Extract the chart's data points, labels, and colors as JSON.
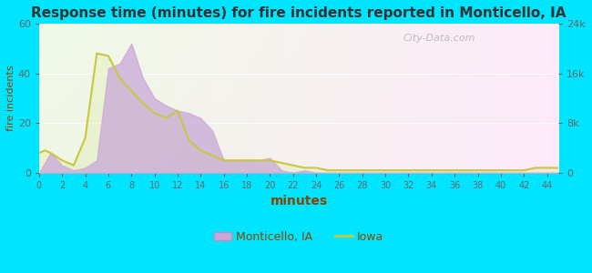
{
  "title": "Response time (minutes) for fire incidents reported in Monticello, IA",
  "xlabel": "minutes",
  "ylabel_left": "fire incidents",
  "ylabel_right_ticks": [
    "0",
    "8k",
    "16k",
    "24k"
  ],
  "ylabel_right_values": [
    0,
    8000,
    16000,
    24000
  ],
  "xlim": [
    0,
    45
  ],
  "ylim_left": [
    0,
    60
  ],
  "ylim_right": [
    0,
    24000
  ],
  "xticks": [
    0,
    2,
    4,
    6,
    8,
    10,
    12,
    14,
    16,
    18,
    20,
    22,
    24,
    26,
    28,
    30,
    32,
    34,
    36,
    38,
    40,
    42,
    44
  ],
  "yticks_left": [
    0,
    20,
    40,
    60
  ],
  "background_outer": "#00e5ff",
  "monticello_color": "#c8a8d8",
  "monticello_edge": "#b090c0",
  "iowa_line_color": "#c8c840",
  "watermark": "City-Data.com",
  "title_color": "#333333",
  "label_color": "#884400",
  "tick_color": "#666666",
  "monticello_x": [
    0,
    1,
    2,
    3,
    4,
    5,
    6,
    7,
    8,
    9,
    10,
    11,
    12,
    13,
    14,
    15,
    16,
    17,
    18,
    19,
    20,
    21,
    22,
    23,
    24,
    25,
    26,
    27,
    28,
    29,
    30,
    31,
    32,
    33,
    34,
    35,
    36,
    37,
    38,
    39,
    40,
    41,
    42,
    43,
    44,
    45
  ],
  "monticello_y": [
    0,
    8,
    3,
    1,
    2,
    5,
    42,
    44,
    52,
    38,
    30,
    27,
    25,
    24,
    22,
    17,
    5,
    5,
    5,
    5,
    6,
    1,
    0,
    1,
    0,
    0,
    0,
    0,
    0,
    0,
    0,
    0,
    0,
    0,
    0,
    0,
    0,
    0,
    0,
    0,
    0,
    0,
    0,
    0,
    0,
    0
  ],
  "iowa_x": [
    0,
    0.5,
    1,
    2,
    3,
    4,
    5,
    6,
    7,
    8,
    9,
    10,
    11,
    12,
    13,
    14,
    15,
    16,
    17,
    18,
    19,
    20,
    21,
    22,
    23,
    24,
    25,
    26,
    27,
    28,
    29,
    30,
    31,
    32,
    33,
    34,
    35,
    36,
    37,
    38,
    39,
    40,
    41,
    42,
    43,
    44,
    45
  ],
  "iowa_y": [
    8,
    9,
    8,
    5,
    3,
    14,
    48,
    47,
    38,
    33,
    28,
    24,
    22,
    25,
    13,
    9,
    7,
    5,
    5,
    5,
    5,
    5,
    4,
    3,
    2,
    2,
    1,
    1,
    1,
    1,
    1,
    1,
    1,
    1,
    1,
    1,
    1,
    1,
    1,
    1,
    1,
    1,
    1,
    1,
    2,
    2,
    2
  ]
}
